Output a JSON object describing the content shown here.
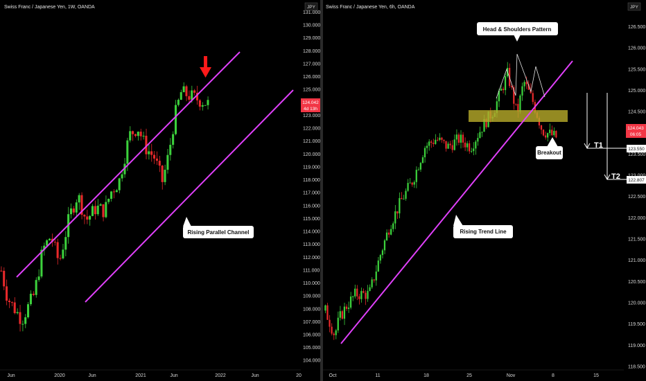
{
  "left_chart": {
    "title": "Swiss Franc / Japanese Yen, 1W, OANDA",
    "currency": "JPY",
    "y_ticks": [
      "131.000",
      "130.000",
      "129.000",
      "128.000",
      "127.000",
      "126.000",
      "125.000",
      "124.000",
      "123.000",
      "122.000",
      "121.000",
      "120.000",
      "119.000",
      "118.000",
      "117.000",
      "116.000",
      "115.000",
      "114.000",
      "113.000",
      "112.000",
      "111.000",
      "110.000",
      "109.000",
      "108.000",
      "107.000",
      "106.000",
      "105.000",
      "104.000"
    ],
    "x_ticks": [
      "Jun",
      "2020",
      "Jun",
      "2021",
      "Jun",
      "2022",
      "Jun",
      "20"
    ],
    "price_tag": {
      "value": "124.042",
      "countdown": "4d 13h",
      "color": "#f23645"
    },
    "callout": "Rising Parallel Channel",
    "arrow_color": "#ff1a1a",
    "channel_color": "#e040fb"
  },
  "right_chart": {
    "title": "Swiss Franc / Japanese Yen, 6h, OANDA",
    "currency": "JPY",
    "y_ticks": [
      "126.500",
      "126.000",
      "125.500",
      "125.000",
      "124.500",
      "124.000",
      "123.500",
      "123.000",
      "122.500",
      "122.000",
      "121.500",
      "121.000",
      "120.500",
      "120.000",
      "119.500",
      "119.000",
      "118.500"
    ],
    "x_ticks": [
      "Oct",
      "11",
      "18",
      "25",
      "Nov",
      "8",
      "15"
    ],
    "price_tag": {
      "value": "124.043",
      "countdown": "06:05",
      "color": "#f23645"
    },
    "callouts": {
      "pattern": "Head & Shoulders Pattern",
      "breakout": "Breakout",
      "trend": "Rising Trend Line"
    },
    "targets": [
      {
        "label": "T1",
        "level": "123.550"
      },
      {
        "label": "T2",
        "level": "122.807"
      }
    ],
    "neckline_zone_color": "#b5a82a",
    "trend_color": "#e040fb"
  },
  "chart_data": [
    {
      "type": "candlestick",
      "title": "Swiss Franc / Japanese Yen, 1W, OANDA",
      "ylim": [
        104,
        131
      ],
      "x_range": [
        "2019-04",
        "2022-10"
      ],
      "last_price": 124.042,
      "annotation": "Rising Parallel Channel",
      "approx_closes": [
        {
          "x": "2019-05",
          "y": 109.5
        },
        {
          "x": "2019-09",
          "y": 108.0
        },
        {
          "x": "2019-12",
          "y": 112.5
        },
        {
          "x": "2020-03",
          "y": 114.0
        },
        {
          "x": "2020-06",
          "y": 112.0
        },
        {
          "x": "2020-09",
          "y": 116.5
        },
        {
          "x": "2020-12",
          "y": 115.5
        },
        {
          "x": "2021-03",
          "y": 117.5
        },
        {
          "x": "2021-05",
          "y": 122.3
        },
        {
          "x": "2021-07",
          "y": 120.0
        },
        {
          "x": "2021-09",
          "y": 117.5
        },
        {
          "x": "2021-10",
          "y": 124.8
        },
        {
          "x": "2021-11",
          "y": 124.04
        }
      ]
    },
    {
      "type": "candlestick",
      "title": "Swiss Franc / Japanese Yen, 6h, OANDA",
      "ylim": [
        118.4,
        126.7
      ],
      "x_range": [
        "2021-10-01",
        "2021-11-18"
      ],
      "last_price": 124.043,
      "annotations": [
        "Head & Shoulders Pattern",
        "Breakout",
        "Rising Trend Line"
      ],
      "targets": [
        {
          "name": "T1",
          "value": 123.55
        },
        {
          "name": "T2",
          "value": 122.807
        }
      ],
      "neckline_zone": [
        124.3,
        124.45
      ],
      "approx_closes": [
        {
          "x": "2021-10-01",
          "y": 119.8
        },
        {
          "x": "2021-10-04",
          "y": 119.0
        },
        {
          "x": "2021-10-07",
          "y": 120.0
        },
        {
          "x": "2021-10-11",
          "y": 121.2
        },
        {
          "x": "2021-10-13",
          "y": 122.3
        },
        {
          "x": "2021-10-15",
          "y": 123.0
        },
        {
          "x": "2021-10-18",
          "y": 124.0
        },
        {
          "x": "2021-10-21",
          "y": 124.5
        },
        {
          "x": "2021-10-25",
          "y": 124.0
        },
        {
          "x": "2021-10-28",
          "y": 124.6
        },
        {
          "x": "2021-10-31",
          "y": 125.0
        },
        {
          "x": "2021-11-02",
          "y": 125.5
        },
        {
          "x": "2021-11-04",
          "y": 124.9
        },
        {
          "x": "2021-11-05",
          "y": 125.2
        },
        {
          "x": "2021-11-07",
          "y": 124.4
        },
        {
          "x": "2021-11-09",
          "y": 124.04
        }
      ]
    }
  ]
}
